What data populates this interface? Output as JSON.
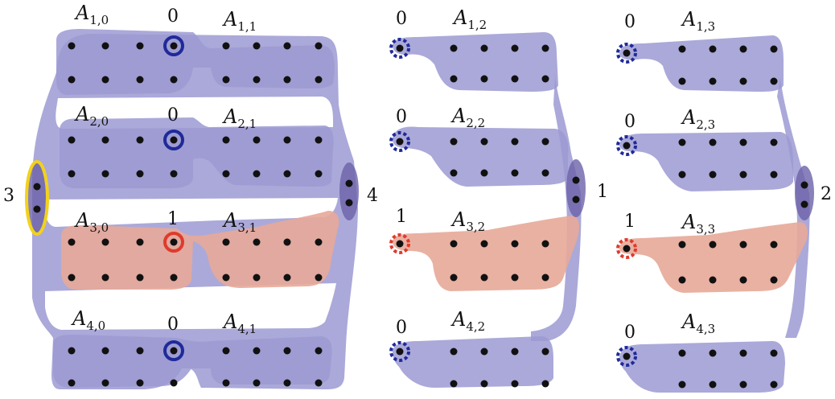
{
  "colors": {
    "blue_region": "#9c9ad2",
    "blue_overlap": "#6b62a8",
    "red_region": "#e7a898",
    "dot": "#111111",
    "ring_blue": "#1f2a99",
    "ring_red": "#e03a2c",
    "ring_yellow": "#f2d21b"
  },
  "panels": [
    {
      "name": "left",
      "connector_label": "4",
      "outer_label": "3",
      "rows": [
        {
          "row": 1,
          "left_block": {
            "letter": "A",
            "sub": "1,0"
          },
          "right_block": {
            "letter": "A",
            "sub": "1,1"
          },
          "marker_label": "0",
          "color": "blue"
        },
        {
          "row": 2,
          "left_block": {
            "letter": "A",
            "sub": "2,0"
          },
          "right_block": {
            "letter": "A",
            "sub": "2,1"
          },
          "marker_label": "0",
          "color": "blue"
        },
        {
          "row": 3,
          "left_block": {
            "letter": "A",
            "sub": "3,0"
          },
          "right_block": {
            "letter": "A",
            "sub": "3,1"
          },
          "marker_label": "1",
          "color": "red"
        },
        {
          "row": 4,
          "left_block": {
            "letter": "A",
            "sub": "4,0"
          },
          "right_block": {
            "letter": "A",
            "sub": "4,1"
          },
          "marker_label": "0",
          "color": "blue"
        }
      ]
    },
    {
      "name": "middle",
      "connector_label": "1",
      "rows": [
        {
          "row": 1,
          "block": {
            "letter": "A",
            "sub": "1,2"
          },
          "marker_label": "0",
          "color": "blue"
        },
        {
          "row": 2,
          "block": {
            "letter": "A",
            "sub": "2,2"
          },
          "marker_label": "0",
          "color": "blue"
        },
        {
          "row": 3,
          "block": {
            "letter": "A",
            "sub": "3,2"
          },
          "marker_label": "1",
          "color": "red"
        },
        {
          "row": 4,
          "block": {
            "letter": "A",
            "sub": "4,2"
          },
          "marker_label": "0",
          "color": "blue"
        }
      ]
    },
    {
      "name": "right",
      "connector_label": "2",
      "rows": [
        {
          "row": 1,
          "block": {
            "letter": "A",
            "sub": "1,3"
          },
          "marker_label": "0",
          "color": "blue"
        },
        {
          "row": 2,
          "block": {
            "letter": "A",
            "sub": "2,3"
          },
          "marker_label": "0",
          "color": "blue"
        },
        {
          "row": 3,
          "block": {
            "letter": "A",
            "sub": "3,3"
          },
          "marker_label": "1",
          "color": "red"
        },
        {
          "row": 4,
          "block": {
            "letter": "A",
            "sub": "4,3"
          },
          "marker_label": "0",
          "color": "blue"
        }
      ]
    }
  ]
}
